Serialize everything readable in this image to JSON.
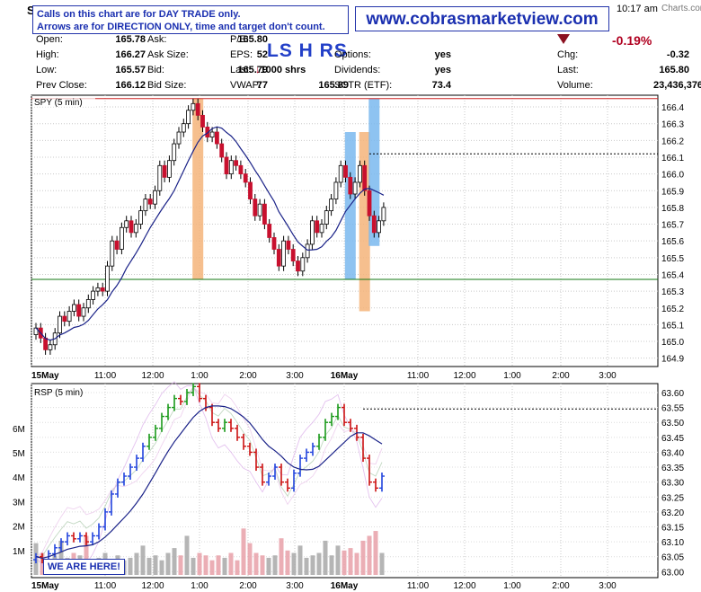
{
  "header": {
    "symbol_initial": "S",
    "time": "10:17 am",
    "watermark": "Charts.com",
    "notice_line1": "Calls on this chart are for DAY TRADE only.",
    "notice_line2": "Arrows are for DIRECTION ONLY, time and target don't count.",
    "website": "www.cobrasmarketview.com",
    "marks": "LS H RS",
    "change_percent": "-0.19%",
    "quote_left": [
      {
        "label": "Open:",
        "value": "165.78"
      },
      {
        "label": "High:",
        "value": "166.27"
      },
      {
        "label": "Low:",
        "value": "165.57"
      },
      {
        "label": "Prev Close:",
        "value": "166.12"
      }
    ],
    "quote_mid": [
      {
        "label": "Ask:",
        "value": "165.80"
      },
      {
        "label": "Ask Size:",
        "value": "52"
      },
      {
        "label": "Bid:",
        "value": "165.79"
      },
      {
        "label": "Bid Size:",
        "value": "77"
      }
    ],
    "quote_mid2": [
      {
        "label": "P/E:",
        "value": ""
      },
      {
        "label": "EPS:",
        "value": ""
      },
      {
        "label": "Last:",
        "value": "1000 shrs"
      },
      {
        "label": "VWAP:",
        "value": "165.89"
      }
    ],
    "quote_right1": [
      {
        "label": "Options:",
        "value": "yes"
      },
      {
        "label": "Dividends:",
        "value": "yes"
      },
      {
        "label": "SCTR (ETF):",
        "value": "73.4"
      }
    ],
    "quote_right2": [
      {
        "label": "Chg:",
        "value": "-0.32"
      },
      {
        "label": "Last:",
        "value": "165.80"
      },
      {
        "label": "Volume:",
        "value": "23,436,376"
      }
    ],
    "colors": {
      "notice_blue": "#1a2fb0",
      "down_red": "#b00020"
    }
  },
  "annotation": "WE ARE HERE!",
  "chart_data": [
    {
      "type": "candlestick",
      "title": "SPY (5 min)",
      "ylim": [
        164.85,
        166.47
      ],
      "y_ticks": [
        164.9,
        165.0,
        165.1,
        165.2,
        165.3,
        165.4,
        165.5,
        165.6,
        165.7,
        165.8,
        165.9,
        166.0,
        166.1,
        166.2,
        166.3,
        166.4
      ],
      "x_tick_labels": [
        "15May",
        "11:00",
        "12:00",
        "1:00",
        "2:00",
        "3:00",
        "16May",
        "11:00",
        "12:00",
        "1:00",
        "2:00",
        "3:00"
      ],
      "horizontal_lines": [
        {
          "y": 166.45,
          "color": "#cc2222",
          "style": "solid"
        },
        {
          "y": 165.37,
          "color": "#117711",
          "style": "solid"
        },
        {
          "y": 166.12,
          "color": "#000000",
          "style": "dotted"
        }
      ],
      "highlight_bars": [
        {
          "bar": 34,
          "color": "#f5b47a",
          "y_range": [
            165.37,
            166.45
          ]
        },
        {
          "bar": 66,
          "color": "#7ab8ee",
          "y_range": [
            165.37,
            166.25
          ]
        },
        {
          "bar": 69,
          "color": "#f5b47a",
          "y_range": [
            165.18,
            166.25
          ]
        },
        {
          "bar": 71,
          "color": "#7ab8ee",
          "y_range": [
            165.57,
            166.45
          ]
        }
      ],
      "series": [
        {
          "name": "",
          "close": [
            165.08,
            165.02,
            164.95,
            164.98,
            165.05,
            165.15,
            165.12,
            165.18,
            165.22,
            165.15,
            165.2,
            165.25,
            165.3,
            165.32,
            165.3,
            165.45,
            165.6,
            165.55,
            165.68,
            165.72,
            165.65,
            165.7,
            165.78,
            165.85,
            165.82,
            165.9,
            166.05,
            165.98,
            166.08,
            166.18,
            166.25,
            166.3,
            166.38,
            166.42,
            166.35,
            166.28,
            166.22,
            166.25,
            166.18,
            166.1,
            166.0,
            166.08,
            166.05,
            166.0,
            165.95,
            165.85,
            165.75,
            165.82,
            165.7,
            165.62,
            165.55,
            165.45,
            165.6,
            165.55,
            165.48,
            165.42,
            165.5,
            165.58,
            165.72,
            165.65,
            165.7,
            165.78,
            165.85,
            165.95,
            166.05,
            165.98,
            165.88,
            165.95,
            166.05,
            165.9,
            165.75,
            165.65,
            165.72,
            165.8
          ]
        },
        {
          "name": "",
          "label_hint": "moving-average"
        }
      ]
    },
    {
      "type": "line",
      "title": "RSP (5 min)",
      "ylim": [
        62.98,
        63.63
      ],
      "y_ticks": [
        63.0,
        63.05,
        63.1,
        63.15,
        63.2,
        63.25,
        63.3,
        63.35,
        63.4,
        63.45,
        63.5,
        63.55,
        63.6
      ],
      "volume_ticks": [
        "1M",
        "2M",
        "3M",
        "4M",
        "5M",
        "6M"
      ],
      "x_tick_labels": [
        "15May",
        "11:00",
        "12:00",
        "1:00",
        "2:00",
        "3:00",
        "16May",
        "11:00",
        "12:00",
        "1:00",
        "2:00",
        "3:00"
      ],
      "horizontal_lines": [
        {
          "y": 63.545,
          "color": "#000000",
          "style": "dotted"
        }
      ],
      "series": [
        {
          "name": "",
          "close": [
            63.05,
            63.04,
            63.06,
            63.08,
            63.1,
            63.12,
            63.11,
            63.12,
            63.1,
            63.12,
            63.15,
            63.2,
            63.26,
            63.3,
            63.32,
            63.35,
            63.38,
            63.42,
            63.45,
            63.48,
            63.52,
            63.55,
            63.58,
            63.57,
            63.6,
            63.62,
            63.58,
            63.55,
            63.5,
            63.48,
            63.5,
            63.48,
            63.45,
            63.42,
            63.4,
            63.35,
            63.3,
            63.32,
            63.35,
            63.3,
            63.28,
            63.33,
            63.38,
            63.4,
            63.42,
            63.45,
            63.5,
            63.52,
            63.55,
            63.5,
            63.48,
            63.45,
            63.38,
            63.3,
            63.28,
            63.32
          ],
          "volume_millions": [
            1.3,
            0.9,
            0.6,
            0.8,
            1.4,
            0.7,
            0.9,
            0.8,
            1.6,
            0.6,
            0.7,
            0.9,
            0.5,
            0.8,
            0.6,
            0.7,
            0.9,
            1.2,
            0.7,
            0.8,
            0.6,
            0.9,
            1.1,
            0.8,
            1.6,
            0.7,
            0.9,
            0.8,
            0.6,
            0.8,
            0.7,
            0.9,
            0.6,
            1.9,
            1.3,
            0.9,
            0.8,
            0.7,
            0.8,
            1.5,
            1.0,
            0.9,
            1.2,
            0.7,
            0.8,
            0.9,
            1.4,
            0.8,
            1.2,
            1.0,
            1.1,
            0.9,
            1.4,
            1.6,
            1.8,
            0.9
          ]
        }
      ]
    }
  ]
}
